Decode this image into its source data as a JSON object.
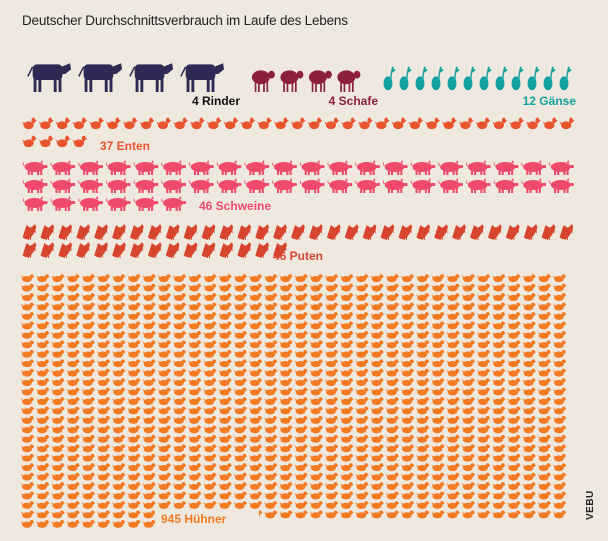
{
  "chart_data": {
    "type": "pictogram",
    "title": "Deutscher Durchschnittsverbrauch im Laufe des Lebens",
    "categories": [
      "Rinder",
      "Schafe",
      "Gänse",
      "Enten",
      "Schweine",
      "Puten",
      "Hühner"
    ],
    "values": [
      4,
      4,
      12,
      37,
      46,
      46,
      945
    ],
    "labels": [
      "4 Rinder",
      "4 Schafe",
      "12 Gänse",
      "37 Enten",
      "46 Schweine",
      "46 Puten",
      "945 Hühner"
    ],
    "colors": [
      "#2e2a55",
      "#8c1f3c",
      "#13a0a0",
      "#e8542e",
      "#ef4a6b",
      "#d8452e",
      "#f27a22"
    ],
    "icons": [
      "cow-icon",
      "sheep-icon",
      "goose-icon",
      "duck-icon",
      "pig-icon",
      "turkey-icon",
      "chicken-icon"
    ],
    "credit": "VEBU"
  }
}
